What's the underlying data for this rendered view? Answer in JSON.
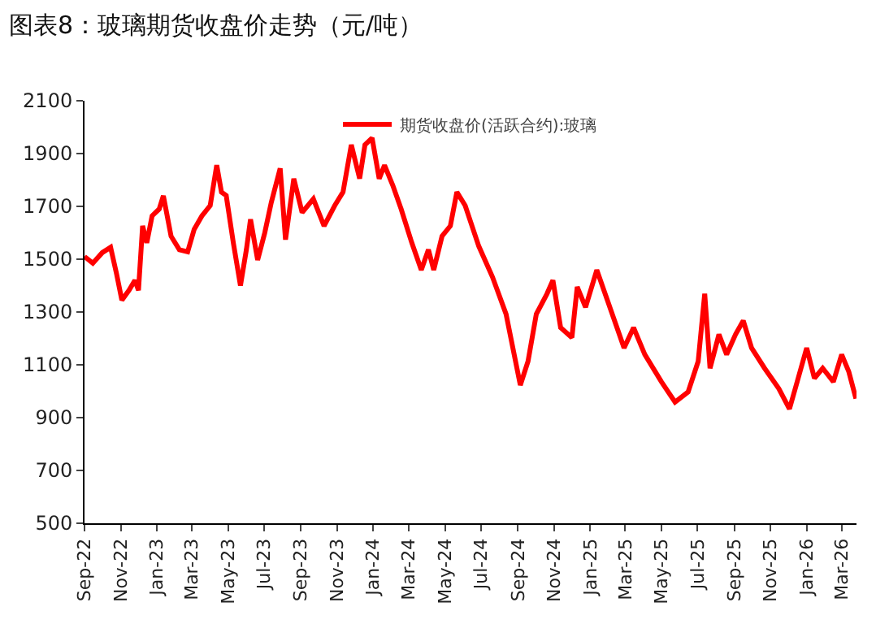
{
  "chart_data": {
    "type": "line",
    "title": "图表8：玻璃期货收盘价走势（元/吨）",
    "x": [
      "2022-09-01",
      "2022-09-15",
      "2022-10-01",
      "2022-10-15",
      "2022-10-25",
      "2022-11-03",
      "2022-11-15",
      "2022-11-25",
      "2022-12-01",
      "2022-12-08",
      "2022-12-15",
      "2022-12-24",
      "2023-01-05",
      "2023-01-12",
      "2023-01-25",
      "2023-02-08",
      "2023-02-22",
      "2023-03-05",
      "2023-03-18",
      "2023-04-01",
      "2023-04-12",
      "2023-04-20",
      "2023-04-28",
      "2023-05-10",
      "2023-05-22",
      "2023-06-01",
      "2023-06-08",
      "2023-06-20",
      "2023-07-02",
      "2023-07-13",
      "2023-07-28",
      "2023-08-06",
      "2023-08-20",
      "2023-09-03",
      "2023-09-22",
      "2023-10-10",
      "2023-10-28",
      "2023-11-11",
      "2023-11-25",
      "2023-12-09",
      "2023-12-18",
      "2023-12-30",
      "2024-01-11",
      "2024-01-20",
      "2024-02-03",
      "2024-02-17",
      "2024-03-06",
      "2024-03-22",
      "2024-04-03",
      "2024-04-12",
      "2024-04-26",
      "2024-05-10",
      "2024-05-21",
      "2024-06-04",
      "2024-06-27",
      "2024-07-20",
      "2024-08-12",
      "2024-09-05",
      "2024-09-18",
      "2024-10-02",
      "2024-10-20",
      "2024-10-30",
      "2024-11-12",
      "2024-12-01",
      "2024-12-10",
      "2024-12-24",
      "2025-01-12",
      "2025-01-30",
      "2025-02-27",
      "2025-03-15",
      "2025-04-03",
      "2025-05-01",
      "2025-05-24",
      "2025-06-15",
      "2025-07-02",
      "2025-07-13",
      "2025-07-22",
      "2025-08-06",
      "2025-08-19",
      "2025-09-03",
      "2025-09-16",
      "2025-09-30",
      "2025-10-22",
      "2025-11-15",
      "2025-12-03",
      "2025-12-16",
      "2026-01-01",
      "2026-01-14",
      "2026-01-28",
      "2026-02-15",
      "2026-03-01",
      "2026-03-13",
      "2026-03-25"
    ],
    "series": [
      {
        "name": "期货收盘价(活跃合约):玻璃",
        "color": "#ff0000",
        "values": [
          1510,
          1485,
          1525,
          1545,
          1445,
          1345,
          1382,
          1420,
          1382,
          1626,
          1562,
          1664,
          1690,
          1740,
          1587,
          1536,
          1528,
          1613,
          1664,
          1703,
          1856,
          1754,
          1741,
          1562,
          1400,
          1536,
          1651,
          1497,
          1600,
          1715,
          1844,
          1574,
          1805,
          1677,
          1728,
          1626,
          1703,
          1754,
          1933,
          1805,
          1933,
          1959,
          1805,
          1856,
          1779,
          1690,
          1562,
          1459,
          1536,
          1459,
          1587,
          1626,
          1754,
          1703,
          1549,
          1433,
          1292,
          1023,
          1113,
          1292,
          1369,
          1420,
          1241,
          1203,
          1395,
          1318,
          1459,
          1344,
          1164,
          1241,
          1139,
          1036,
          959,
          997,
          1113,
          1369,
          1087,
          1215,
          1139,
          1215,
          1267,
          1164,
          1087,
          1010,
          933,
          1036,
          1164,
          1049,
          1087,
          1036,
          1139,
          1074,
          972
        ]
      }
    ],
    "xlim": [
      "2022-09-01",
      "2026-03-26"
    ],
    "xticks": [
      {
        "value": "2022-09-01",
        "label": "Sep-22"
      },
      {
        "value": "2022-11-01",
        "label": "Nov-22"
      },
      {
        "value": "2023-01-01",
        "label": "Jan-23"
      },
      {
        "value": "2023-03-01",
        "label": "Mar-23"
      },
      {
        "value": "2023-05-01",
        "label": "May-23"
      },
      {
        "value": "2023-07-01",
        "label": "Jul-23"
      },
      {
        "value": "2023-09-01",
        "label": "Sep-23"
      },
      {
        "value": "2023-11-01",
        "label": "Nov-23"
      },
      {
        "value": "2024-01-01",
        "label": "Jan-24"
      },
      {
        "value": "2024-03-01",
        "label": "Mar-24"
      },
      {
        "value": "2024-05-01",
        "label": "May-24"
      },
      {
        "value": "2024-07-01",
        "label": "Jul-24"
      },
      {
        "value": "2024-09-01",
        "label": "Sep-24"
      },
      {
        "value": "2024-11-01",
        "label": "Nov-24"
      },
      {
        "value": "2025-01-01",
        "label": "Jan-25"
      },
      {
        "value": "2025-03-01",
        "label": "Mar-25"
      },
      {
        "value": "2025-05-01",
        "label": "May-25"
      },
      {
        "value": "2025-07-01",
        "label": "Jul-25"
      },
      {
        "value": "2025-09-01",
        "label": "Sep-25"
      },
      {
        "value": "2025-11-01",
        "label": "Nov-25"
      },
      {
        "value": "2026-01-01",
        "label": "Jan-26"
      },
      {
        "value": "2026-03-01",
        "label": "Mar-26"
      }
    ],
    "ylim": [
      500,
      2100
    ],
    "yticks": [
      500,
      700,
      900,
      1100,
      1300,
      1500,
      1700,
      1900,
      2100
    ],
    "legend": "top",
    "marker": "none",
    "line_style": "solid"
  }
}
